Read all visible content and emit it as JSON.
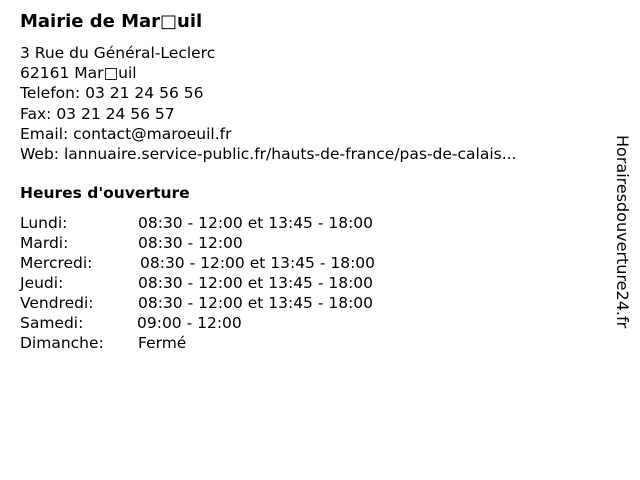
{
  "title": "Mairie de Mar□uil",
  "contact": {
    "street": "3 Rue du Général-Leclerc",
    "city": "62161 Mar□uil",
    "phone": "Telefon: 03 21 24 56 56",
    "fax": "Fax: 03 21 24 56 57",
    "email": "Email: contact@maroeuil.fr",
    "web": "Web: lannuaire.service-public.fr/hauts-de-france/pas-de-calais..."
  },
  "hours_heading": "Heures d'ouverture",
  "hours": [
    {
      "day": "Lundi:",
      "time": "08:30 - 12:00 et 13:45 - 18:00"
    },
    {
      "day": "Mardi:",
      "time": "08:30 - 12:00"
    },
    {
      "day": "Mercredi:",
      "time": "08:30 - 12:00 et 13:45 - 18:00"
    },
    {
      "day": "Jeudi:",
      "time": "08:30 - 12:00 et 13:45 - 18:00"
    },
    {
      "day": "Vendredi:",
      "time": "08:30 - 12:00 et 13:45 - 18:00"
    },
    {
      "day": "Samedi:",
      "time": "09:00 - 12:00"
    },
    {
      "day": "Dimanche:",
      "time": "Fermé"
    }
  ],
  "side_brand": "Horairesdouverture24.fr"
}
